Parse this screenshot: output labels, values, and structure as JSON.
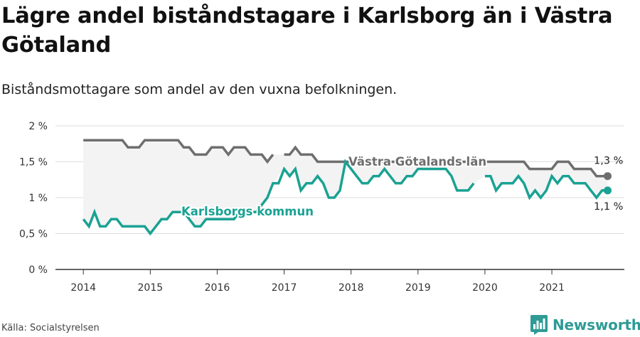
{
  "header": {
    "title": "Lägre andel biståndstagare i Karlsborg än i Västra Götaland",
    "subtitle": "Biståndsmottagare som andel av den vuxna befolkningen."
  },
  "footer": {
    "source": "Källa: Socialstyrelsen",
    "brand": "Newsworthy",
    "brand_icon": "bar-chart-logo-icon"
  },
  "colors": {
    "karlsborg": "#1aa293",
    "vastra_gotaland": "#6e6e6e",
    "band": "#f3f3f3",
    "grid": "#dddddd",
    "axis": "#333333"
  },
  "chart_data": {
    "type": "line",
    "ylim": [
      0,
      2
    ],
    "y_ticks": [
      0,
      0.5,
      1,
      1.5,
      2
    ],
    "y_tick_labels": [
      "0 %",
      "0,5 %",
      "1 %",
      "1,5 %",
      "2 %"
    ],
    "xlim": [
      "2013-08",
      "2022-02"
    ],
    "x_ticks": [
      "2014-01",
      "2015-01",
      "2016-01",
      "2017-01",
      "2018-01",
      "2019-01",
      "2020-01",
      "2021-01"
    ],
    "x_tick_labels": [
      "2014",
      "2015",
      "2016",
      "2017",
      "2018",
      "2019",
      "2020",
      "2021"
    ],
    "grid": "horizontal",
    "shaded_band_between_series": true,
    "series": [
      {
        "name": "Västra Götalands län",
        "key": "vastra_gotaland",
        "label": "Västra Götalands län",
        "end_label": "1,3 %",
        "points": [
          [
            "2014-01",
            1.8
          ],
          [
            "2014-02",
            1.8
          ],
          [
            "2014-03",
            1.8
          ],
          [
            "2014-04",
            1.8
          ],
          [
            "2014-05",
            1.8
          ],
          [
            "2014-06",
            1.8
          ],
          [
            "2014-07",
            1.8
          ],
          [
            "2014-08",
            1.8
          ],
          [
            "2014-09",
            1.7
          ],
          [
            "2014-10",
            1.7
          ],
          [
            "2014-11",
            1.7
          ],
          [
            "2014-12",
            1.8
          ],
          [
            "2015-01",
            1.8
          ],
          [
            "2015-02",
            1.8
          ],
          [
            "2015-03",
            1.8
          ],
          [
            "2015-04",
            1.8
          ],
          [
            "2015-05",
            1.8
          ],
          [
            "2015-06",
            1.8
          ],
          [
            "2015-07",
            1.7
          ],
          [
            "2015-08",
            1.7
          ],
          [
            "2015-09",
            1.6
          ],
          [
            "2015-10",
            1.6
          ],
          [
            "2015-11",
            1.6
          ],
          [
            "2015-12",
            1.7
          ],
          [
            "2016-01",
            1.7
          ],
          [
            "2016-02",
            1.7
          ],
          [
            "2016-03",
            1.6
          ],
          [
            "2016-04",
            1.7
          ],
          [
            "2016-05",
            1.7
          ],
          [
            "2016-06",
            1.7
          ],
          [
            "2016-07",
            1.6
          ],
          [
            "2016-08",
            1.6
          ],
          [
            "2016-09",
            1.6
          ],
          [
            "2016-10",
            1.5
          ],
          [
            "2016-11",
            1.6
          ],
          null,
          [
            "2017-01",
            1.6
          ],
          [
            "2017-02",
            1.6
          ],
          [
            "2017-03",
            1.7
          ],
          [
            "2017-04",
            1.6
          ],
          [
            "2017-05",
            1.6
          ],
          [
            "2017-06",
            1.6
          ],
          [
            "2017-07",
            1.5
          ],
          [
            "2017-08",
            1.5
          ],
          [
            "2017-09",
            1.5
          ],
          [
            "2017-10",
            1.5
          ],
          [
            "2017-11",
            1.5
          ],
          [
            "2017-12",
            1.5
          ],
          [
            "2018-01",
            1.5
          ],
          [
            "2018-02",
            1.5
          ],
          [
            "2018-03",
            1.5
          ],
          [
            "2018-04",
            1.5
          ],
          [
            "2018-05",
            1.5
          ],
          [
            "2018-06",
            1.5
          ],
          [
            "2018-07",
            1.5
          ],
          [
            "2018-08",
            1.5
          ],
          [
            "2018-09",
            1.5
          ],
          [
            "2018-10",
            1.5
          ],
          [
            "2018-11",
            1.5
          ],
          [
            "2018-12",
            1.5
          ],
          [
            "2019-01",
            1.5
          ],
          [
            "2019-02",
            1.5
          ],
          [
            "2019-03",
            1.5
          ],
          [
            "2019-04",
            1.5
          ],
          [
            "2019-05",
            1.5
          ],
          [
            "2019-06",
            1.5
          ],
          [
            "2019-07",
            1.5
          ],
          [
            "2019-08",
            1.5
          ],
          [
            "2019-09",
            1.5
          ],
          [
            "2019-10",
            1.5
          ],
          [
            "2019-11",
            1.5
          ],
          [
            "2019-12",
            1.5
          ],
          [
            "2020-01",
            1.5
          ],
          [
            "2020-02",
            1.5
          ],
          [
            "2020-03",
            1.5
          ],
          [
            "2020-04",
            1.5
          ],
          [
            "2020-05",
            1.5
          ],
          [
            "2020-06",
            1.5
          ],
          [
            "2020-07",
            1.5
          ],
          [
            "2020-08",
            1.5
          ],
          [
            "2020-09",
            1.4
          ],
          [
            "2020-10",
            1.4
          ],
          [
            "2020-11",
            1.4
          ],
          [
            "2020-12",
            1.4
          ],
          [
            "2021-01",
            1.4
          ],
          [
            "2021-02",
            1.5
          ],
          [
            "2021-03",
            1.5
          ],
          [
            "2021-04",
            1.5
          ],
          [
            "2021-05",
            1.4
          ],
          [
            "2021-06",
            1.4
          ],
          [
            "2021-07",
            1.4
          ],
          [
            "2021-08",
            1.4
          ],
          [
            "2021-09",
            1.3
          ],
          [
            "2021-10",
            1.3
          ],
          [
            "2021-11",
            1.3
          ]
        ]
      },
      {
        "name": "Karlsborgs kommun",
        "key": "karlsborg",
        "label": "Karlsborgs kommun",
        "end_label": "1,1 %",
        "points": [
          [
            "2014-01",
            0.7
          ],
          [
            "2014-02",
            0.6
          ],
          [
            "2014-03",
            0.8
          ],
          [
            "2014-04",
            0.6
          ],
          [
            "2014-05",
            0.6
          ],
          [
            "2014-06",
            0.7
          ],
          [
            "2014-07",
            0.7
          ],
          [
            "2014-08",
            0.6
          ],
          [
            "2014-09",
            0.6
          ],
          [
            "2014-10",
            0.6
          ],
          [
            "2014-11",
            0.6
          ],
          [
            "2014-12",
            0.6
          ],
          [
            "2015-01",
            0.5
          ],
          [
            "2015-02",
            0.6
          ],
          [
            "2015-03",
            0.7
          ],
          [
            "2015-04",
            0.7
          ],
          [
            "2015-05",
            0.8
          ],
          [
            "2015-06",
            0.8
          ],
          [
            "2015-07",
            0.8
          ],
          [
            "2015-08",
            0.7
          ],
          [
            "2015-09",
            0.6
          ],
          [
            "2015-10",
            0.6
          ],
          [
            "2015-11",
            0.7
          ],
          [
            "2015-12",
            0.7
          ],
          [
            "2016-01",
            0.7
          ],
          [
            "2016-02",
            0.7
          ],
          [
            "2016-03",
            0.7
          ],
          [
            "2016-04",
            0.7
          ],
          [
            "2016-05",
            0.8
          ],
          [
            "2016-06",
            0.8
          ],
          [
            "2016-07",
            0.8
          ],
          [
            "2016-08",
            0.8
          ],
          [
            "2016-09",
            0.9
          ],
          [
            "2016-10",
            1.0
          ],
          [
            "2016-11",
            1.2
          ],
          [
            "2016-12",
            1.2
          ],
          [
            "2017-01",
            1.4
          ],
          [
            "2017-02",
            1.3
          ],
          [
            "2017-03",
            1.4
          ],
          [
            "2017-04",
            1.1
          ],
          [
            "2017-05",
            1.2
          ],
          [
            "2017-06",
            1.2
          ],
          [
            "2017-07",
            1.3
          ],
          [
            "2017-08",
            1.2
          ],
          [
            "2017-09",
            1.0
          ],
          [
            "2017-10",
            1.0
          ],
          [
            "2017-11",
            1.1
          ],
          [
            "2017-12",
            1.5
          ],
          [
            "2018-01",
            1.4
          ],
          [
            "2018-02",
            1.3
          ],
          [
            "2018-03",
            1.2
          ],
          [
            "2018-04",
            1.2
          ],
          [
            "2018-05",
            1.3
          ],
          [
            "2018-06",
            1.3
          ],
          [
            "2018-07",
            1.4
          ],
          [
            "2018-08",
            1.3
          ],
          [
            "2018-09",
            1.2
          ],
          [
            "2018-10",
            1.2
          ],
          [
            "2018-11",
            1.3
          ],
          [
            "2018-12",
            1.3
          ],
          [
            "2019-01",
            1.4
          ],
          [
            "2019-02",
            1.4
          ],
          [
            "2019-03",
            1.4
          ],
          [
            "2019-04",
            1.4
          ],
          [
            "2019-05",
            1.4
          ],
          [
            "2019-06",
            1.4
          ],
          [
            "2019-07",
            1.3
          ],
          [
            "2019-08",
            1.1
          ],
          [
            "2019-09",
            1.1
          ],
          [
            "2019-10",
            1.1
          ],
          [
            "2019-11",
            1.2
          ],
          null,
          [
            "2020-01",
            1.3
          ],
          [
            "2020-02",
            1.3
          ],
          [
            "2020-03",
            1.1
          ],
          [
            "2020-04",
            1.2
          ],
          [
            "2020-05",
            1.2
          ],
          [
            "2020-06",
            1.2
          ],
          [
            "2020-07",
            1.3
          ],
          [
            "2020-08",
            1.2
          ],
          [
            "2020-09",
            1.0
          ],
          [
            "2020-10",
            1.1
          ],
          [
            "2020-11",
            1.0
          ],
          [
            "2020-12",
            1.1
          ],
          [
            "2021-01",
            1.3
          ],
          [
            "2021-02",
            1.2
          ],
          [
            "2021-03",
            1.3
          ],
          [
            "2021-04",
            1.3
          ],
          [
            "2021-05",
            1.2
          ],
          [
            "2021-06",
            1.2
          ],
          [
            "2021-07",
            1.2
          ],
          [
            "2021-08",
            1.1
          ],
          [
            "2021-09",
            1.0
          ],
          [
            "2021-10",
            1.1
          ],
          [
            "2021-11",
            1.1
          ]
        ]
      }
    ]
  }
}
